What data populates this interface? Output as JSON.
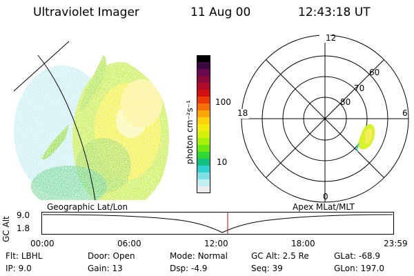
{
  "header": {
    "instrument": "Ultraviolet Imager",
    "date": "11 Aug 00",
    "time": "12:43:18 UT"
  },
  "colorbar": {
    "unit_label": "photon cm⁻²s⁻¹",
    "ticks": [
      "100",
      "10"
    ],
    "colors": [
      "#000000",
      "#3b0a40",
      "#6a0a50",
      "#8a0a3c",
      "#b00a28",
      "#d21010",
      "#ec3a0a",
      "#f7700a",
      "#fba60a",
      "#fcd20a",
      "#f4ec0a",
      "#d6f20a",
      "#a8f00a",
      "#6ce60e",
      "#30d636",
      "#10c080",
      "#30d0d0",
      "#80e0e6",
      "#c2eef2",
      "#ececec"
    ]
  },
  "polar_plot": {
    "mlt_labels": [
      "12",
      "18",
      "6",
      "0"
    ],
    "mlat_labels": [
      "60",
      "70",
      "80"
    ]
  },
  "altitude_plot": {
    "ylabel": "GC Alt",
    "yticks": [
      "9.0",
      "1.8"
    ],
    "left_title": "Geographic Lat/Lon",
    "right_title": "Apex MLat/MLT",
    "xticks": [
      "00:00",
      "06:00",
      "12:00",
      "18:00",
      "23:59"
    ]
  },
  "info": {
    "row1": [
      {
        "label": "Flt:",
        "value": "LBHL"
      },
      {
        "label": "Door:",
        "value": "Open"
      },
      {
        "label": "Mode:",
        "value": "Normal"
      },
      {
        "label": "GC Alt:",
        "value": "2.5 Re"
      },
      {
        "label": "GLat:",
        "value": "-68.9"
      }
    ],
    "row2": [
      {
        "label": "IP:",
        "value": "9.0"
      },
      {
        "label": "Gain:",
        "value": "13"
      },
      {
        "label": "Dsp:",
        "value": "-4.9"
      },
      {
        "label": "Seq:",
        "value": "39"
      },
      {
        "label": "GLon:",
        "value": "197.0"
      }
    ]
  },
  "colors": {
    "cursor": "#d00000"
  }
}
